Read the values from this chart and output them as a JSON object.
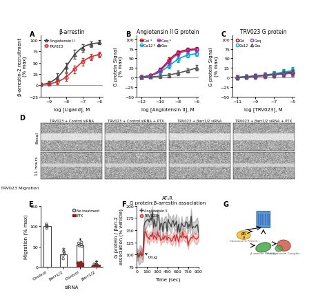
{
  "panel_A": {
    "title": "β-arrestin",
    "xlabel": "log [Ligand], M",
    "ylabel": "β-arrestin-2 recruitment\n(% max)",
    "xlim": [
      -9.5,
      -5.8
    ],
    "ylim": [
      -25,
      110
    ],
    "xticks": [
      -9,
      -8,
      -7,
      -6
    ],
    "yticks": [
      -25,
      0,
      25,
      50,
      75,
      100
    ],
    "series": [
      {
        "label": "Angiotensin II",
        "color": "#444444",
        "marker": "^",
        "x": [
          -9.5,
          -9.0,
          -8.5,
          -8.0,
          -7.5,
          -7.0,
          -6.5,
          -6.0
        ],
        "y": [
          2,
          5,
          18,
          40,
          68,
          82,
          90,
          95
        ],
        "yerr": [
          3,
          4,
          8,
          10,
          10,
          8,
          6,
          5
        ]
      },
      {
        "label": "TRV023",
        "color": "#cc3333",
        "marker": "o",
        "x": [
          -9.5,
          -9.0,
          -8.5,
          -8.0,
          -7.5,
          -7.0,
          -6.5,
          -6.0
        ],
        "y": [
          2,
          3,
          8,
          18,
          35,
          52,
          62,
          68
        ],
        "yerr": [
          3,
          4,
          6,
          8,
          9,
          8,
          7,
          6
        ]
      }
    ]
  },
  "panel_B": {
    "title": "Angiotensin II G protein",
    "xlabel": "log [Angiotensin II], M",
    "ylabel": "G protein Signal\n(% max)",
    "xlim": [
      -12.5,
      -5.8
    ],
    "ylim": [
      -50,
      110
    ],
    "xticks": [
      -12,
      -10,
      -8,
      -6
    ],
    "yticks": [
      -50,
      -25,
      0,
      25,
      50,
      75,
      100
    ],
    "series": [
      {
        "label": "Gαi *",
        "color": "#cc0000",
        "marker": "o",
        "x": [
          -12,
          -11,
          -10,
          -9,
          -8,
          -7,
          -6
        ],
        "y": [
          2,
          5,
          20,
          45,
          65,
          72,
          75
        ],
        "yerr": [
          3,
          4,
          6,
          7,
          6,
          5,
          5
        ]
      },
      {
        "label": "Gα12 *",
        "color": "#00aacc",
        "marker": "o",
        "x": [
          -12,
          -11,
          -10,
          -9,
          -8,
          -7,
          -6
        ],
        "y": [
          2,
          4,
          15,
          30,
          48,
          58,
          62
        ],
        "yerr": [
          3,
          4,
          6,
          7,
          8,
          6,
          5
        ]
      },
      {
        "label": "Gαq *",
        "color": "#9933cc",
        "marker": "o",
        "x": [
          -12,
          -11,
          -10,
          -9,
          -8,
          -7,
          -6
        ],
        "y": [
          2,
          4,
          18,
          40,
          62,
          70,
          72
        ],
        "yerr": [
          3,
          4,
          6,
          8,
          7,
          6,
          5
        ]
      },
      {
        "label": "Gαs",
        "color": "#555555",
        "marker": "^",
        "x": [
          -12,
          -11,
          -10,
          -9,
          -8,
          -7,
          -6
        ],
        "y": [
          0,
          2,
          4,
          6,
          12,
          18,
          25
        ],
        "yerr": [
          3,
          4,
          5,
          5,
          6,
          6,
          7
        ]
      }
    ]
  },
  "panel_C": {
    "title": "TRV023 G protein",
    "xlabel": "log [TRV023], M",
    "ylabel": "G protein Signal\n(% max)",
    "xlim": [
      -11.5,
      -4.8
    ],
    "ylim": [
      -50,
      110
    ],
    "xticks": [
      -11,
      -9,
      -7,
      -5
    ],
    "yticks": [
      -50,
      -25,
      0,
      25,
      50,
      75,
      100
    ],
    "series": [
      {
        "label": "Gαi",
        "color": "#cc0000",
        "marker": "o",
        "x": [
          -11,
          -10,
          -9,
          -8,
          -7,
          -6,
          -5
        ],
        "y": [
          0,
          2,
          3,
          5,
          8,
          10,
          12
        ],
        "yerr": [
          5,
          5,
          6,
          6,
          7,
          7,
          8
        ]
      },
      {
        "label": "Gα12",
        "color": "#00aacc",
        "marker": "o",
        "x": [
          -11,
          -10,
          -9,
          -8,
          -7,
          -6,
          -5
        ],
        "y": [
          0,
          2,
          4,
          6,
          10,
          14,
          18
        ],
        "yerr": [
          5,
          5,
          6,
          6,
          7,
          8,
          9
        ]
      },
      {
        "label": "Gαq",
        "color": "#9933cc",
        "marker": "o",
        "x": [
          -11,
          -10,
          -9,
          -8,
          -7,
          -6,
          -5
        ],
        "y": [
          0,
          2,
          3,
          5,
          7,
          9,
          11
        ],
        "yerr": [
          5,
          5,
          6,
          6,
          7,
          7,
          8
        ]
      },
      {
        "label": "Gαs",
        "color": "#555555",
        "marker": "^",
        "x": [
          -11,
          -10,
          -9,
          -8,
          -7,
          -6,
          -5
        ],
        "y": [
          0,
          2,
          4,
          6,
          8,
          12,
          15
        ],
        "yerr": [
          5,
          5,
          6,
          6,
          7,
          8,
          9
        ]
      }
    ]
  },
  "panel_E": {
    "title": "",
    "xlabel": "siRNA",
    "ylabel": "Migration (% max)",
    "ylim": [
      0,
      150
    ],
    "yticks": [
      0,
      50,
      100,
      150
    ],
    "groups": [
      "Control",
      "βarr1/2",
      "Control",
      "βarr1/2"
    ],
    "no_treatment": [
      100,
      30,
      55,
      5
    ],
    "ptx": [
      null,
      null,
      10,
      3
    ],
    "scatter_no_treatment": [
      [
        95,
        100,
        105,
        98,
        102
      ],
      [
        20,
        28,
        35,
        32,
        38
      ],
      [
        50,
        55,
        60,
        52,
        58
      ],
      [
        3,
        4,
        5,
        6,
        7
      ]
    ],
    "scatter_ptx": [
      [
        null
      ],
      [
        null
      ],
      [
        8,
        10,
        12,
        9,
        11
      ],
      [
        2,
        3,
        4,
        3,
        4
      ]
    ]
  },
  "panel_F": {
    "title": "AT₁R\nG protein:β-arrestin association",
    "xlabel": "Time (sec)",
    "ylabel": "G protein / βarr-2\nassociation (% vehicle)",
    "xlim": [
      0,
      900
    ],
    "ylim": [
      75,
      200
    ],
    "yticks": [
      75,
      100,
      125,
      150,
      175,
      200
    ],
    "xticks": [
      0,
      150,
      300,
      450,
      600,
      750,
      900
    ],
    "series": [
      {
        "label": "Angiotensin II",
        "color": "#444444",
        "marker": "+"
      },
      {
        "label": "TRV023",
        "color": "#cc3333",
        "marker": "o"
      }
    ]
  },
  "colors": {
    "background": "#ffffff",
    "grid_line": "#cccccc",
    "zero_line": "#888888"
  }
}
